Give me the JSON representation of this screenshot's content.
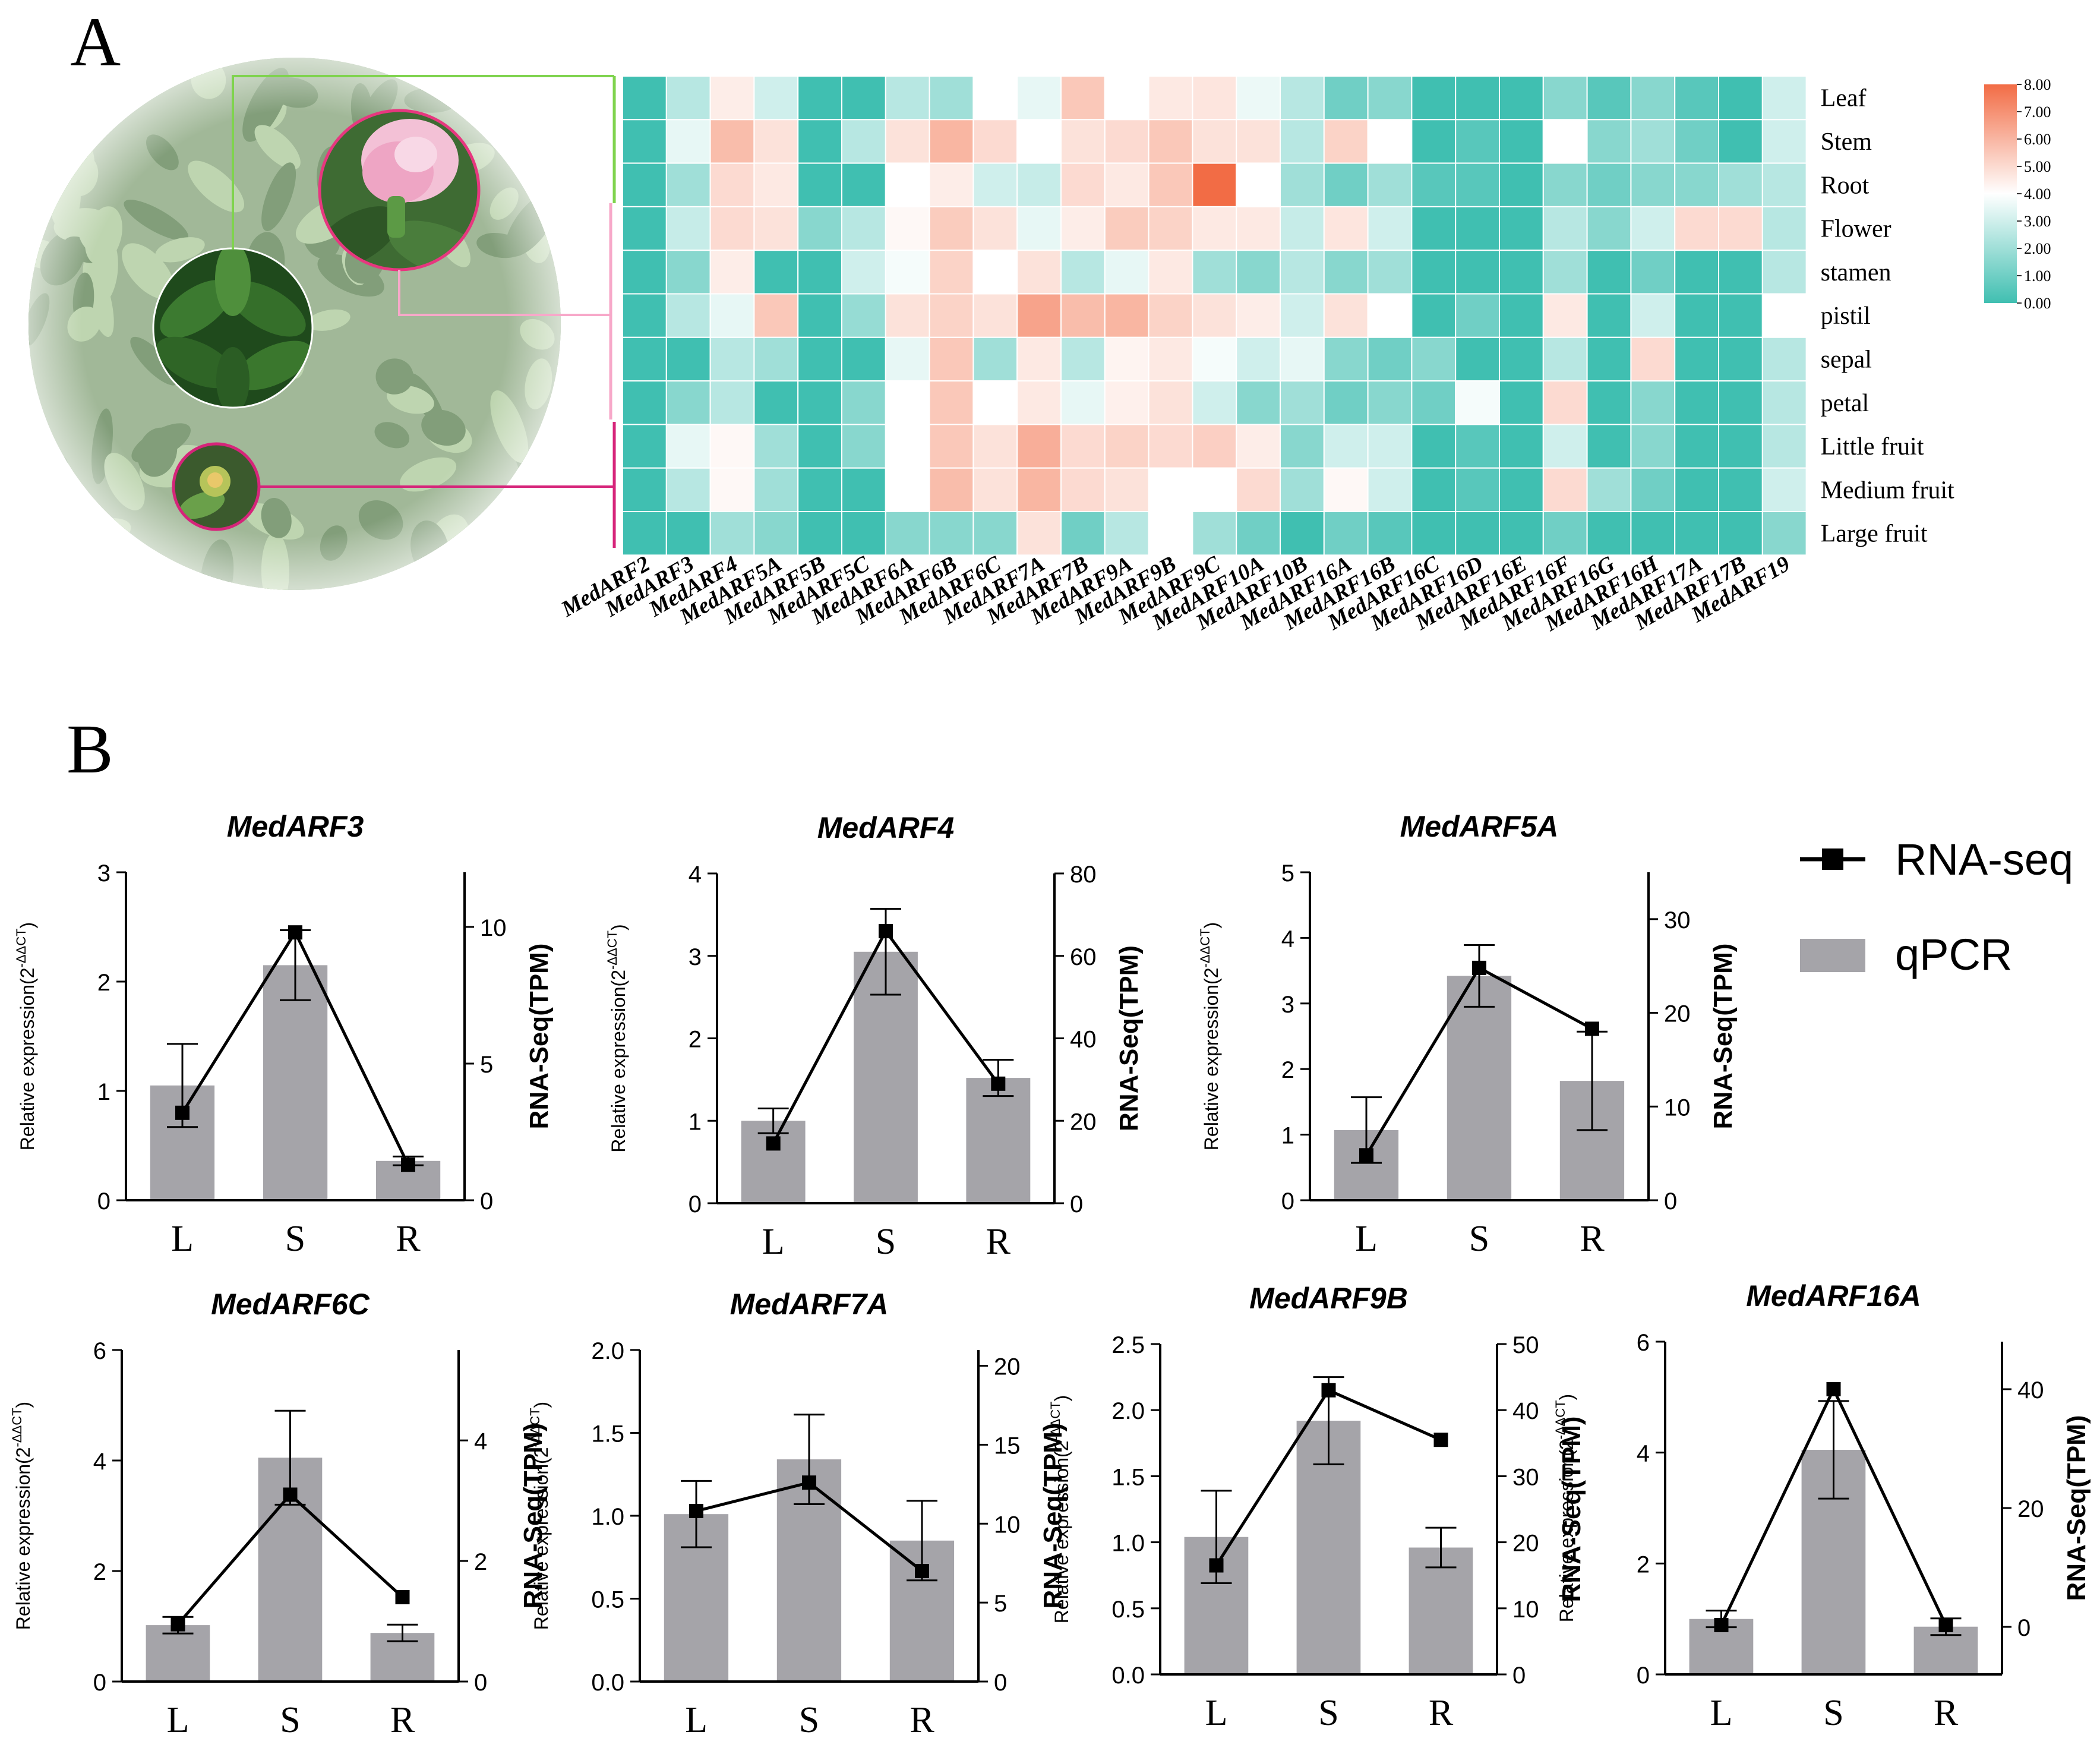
{
  "panels": {
    "a_label": "A",
    "b_label": "B"
  },
  "heatmap": {
    "genes": [
      "MedARF2",
      "MedARF3",
      "MedARF4",
      "MedARF5A",
      "MedARF5B",
      "MedARF5C",
      "MedARF6A",
      "MedARF6B",
      "MedARF6C",
      "MedARF7A",
      "MedARF7B",
      "MedARF9A",
      "MedARF9B",
      "MedARF9C",
      "MedARF10A",
      "MedARF10B",
      "MedARF16A",
      "MedARF16B",
      "MedARF16C",
      "MedARF16D",
      "MedARF16E",
      "MedARF16F",
      "MedARF16G",
      "MedARF16H",
      "MedARF17A",
      "MedARF17B",
      "MedARF19"
    ],
    "tissues": [
      "Leaf",
      "Stem",
      "Root",
      "Flower",
      "stamen",
      "pistil",
      "sepal",
      "petal",
      "Little fruit",
      "Medium fruit",
      "Large fruit"
    ],
    "values": [
      [
        0.0,
        2.5,
        4.5,
        3.0,
        0.0,
        0.0,
        2.5,
        2.0,
        4.0,
        3.5,
        5.5,
        4.0,
        4.6,
        4.7,
        3.6,
        2.5,
        1.0,
        1.5,
        0.0,
        0.0,
        0.0,
        1.5,
        0.5,
        1.5,
        0.5,
        0.0,
        3.0
      ],
      [
        0.0,
        3.5,
        5.8,
        4.8,
        0.0,
        2.5,
        4.8,
        6.0,
        5.0,
        4.0,
        4.8,
        5.0,
        5.5,
        4.8,
        4.8,
        2.5,
        5.2,
        4.0,
        0.0,
        0.5,
        0.0,
        4.0,
        1.5,
        2.0,
        1.0,
        0.0,
        3.0
      ],
      [
        0.0,
        2.0,
        5.0,
        4.6,
        0.0,
        0.0,
        4.0,
        4.5,
        3.0,
        2.8,
        5.0,
        4.6,
        5.5,
        8.0,
        4.0,
        2.0,
        1.0,
        2.0,
        0.5,
        0.5,
        0.0,
        1.5,
        1.0,
        1.5,
        1.5,
        2.0,
        2.5
      ],
      [
        0.0,
        2.8,
        5.0,
        4.8,
        1.5,
        2.5,
        4.2,
        5.4,
        4.8,
        3.5,
        4.5,
        5.4,
        5.2,
        4.6,
        4.6,
        2.8,
        4.7,
        3.0,
        0.0,
        0.0,
        0.0,
        2.5,
        1.5,
        3.0,
        5.0,
        5.0,
        2.5
      ],
      [
        0.0,
        1.5,
        4.5,
        0.0,
        0.0,
        3.0,
        3.8,
        5.2,
        4.0,
        4.8,
        2.5,
        3.5,
        4.6,
        2.0,
        1.5,
        2.5,
        1.5,
        2.0,
        0.0,
        0.0,
        0.0,
        2.0,
        0.0,
        1.0,
        0.0,
        0.0,
        2.5
      ],
      [
        0.0,
        2.5,
        3.5,
        5.5,
        0.0,
        1.8,
        4.8,
        5.2,
        4.8,
        6.5,
        5.8,
        6.0,
        5.2,
        4.8,
        4.5,
        3.0,
        4.8,
        4.0,
        0.0,
        1.0,
        0.0,
        4.6,
        0.0,
        3.0,
        0.0,
        0.0,
        4.0
      ],
      [
        0.0,
        0.0,
        2.5,
        2.0,
        0.0,
        0.0,
        3.5,
        5.5,
        2.0,
        4.6,
        2.5,
        4.3,
        4.6,
        3.8,
        3.0,
        3.5,
        1.5,
        1.0,
        1.5,
        0.0,
        0.0,
        2.5,
        0.0,
        5.0,
        0.0,
        0.0,
        2.5
      ],
      [
        0.0,
        1.5,
        2.5,
        0.0,
        0.0,
        1.5,
        4.0,
        5.5,
        4.0,
        4.6,
        3.5,
        4.4,
        4.8,
        3.0,
        1.5,
        2.0,
        1.0,
        1.5,
        1.0,
        3.8,
        0.0,
        5.0,
        0.0,
        1.5,
        0.0,
        0.0,
        2.5
      ],
      [
        0.0,
        3.5,
        4.2,
        2.0,
        0.0,
        1.5,
        4.0,
        5.5,
        4.8,
        6.2,
        5.0,
        5.2,
        5.0,
        5.3,
        4.5,
        1.5,
        3.0,
        3.0,
        0.0,
        0.5,
        0.0,
        3.0,
        0.0,
        1.5,
        0.0,
        0.0,
        2.5
      ],
      [
        0.0,
        2.5,
        4.2,
        2.0,
        0.0,
        0.0,
        4.0,
        5.8,
        4.8,
        6.0,
        5.0,
        4.8,
        4.0,
        4.0,
        5.0,
        2.0,
        4.2,
        3.0,
        0.0,
        0.5,
        0.0,
        5.0,
        2.0,
        1.0,
        0.0,
        0.0,
        3.0
      ],
      [
        0.0,
        0.0,
        2.0,
        1.5,
        0.0,
        0.0,
        1.5,
        1.5,
        1.5,
        4.8,
        1.0,
        2.5,
        4.0,
        2.0,
        1.0,
        0.0,
        1.0,
        0.5,
        0.0,
        0.0,
        0.0,
        1.0,
        0.0,
        0.0,
        0.0,
        0.0,
        1.5
      ]
    ]
  },
  "colorbar": {
    "ticks": [
      "8.00",
      "7.00",
      "6.00",
      "5.00",
      "4.00",
      "3.00",
      "2.00",
      "1.00",
      "0.00"
    ],
    "low_color": "#40bfb1",
    "mid_color": "#ffffff",
    "high_color": "#f26c45"
  },
  "photo_colors": {
    "bg": "#7d9e6c",
    "leaf_dark": "#3f6b34",
    "leaf_light": "#9bbf86",
    "flower": "#f0b6cf",
    "green_line": "#7fd34e",
    "pink_line": "#f7a8c9",
    "magenta_line": "#d6247a"
  },
  "legend": {
    "rnaseq": "RNA-seq",
    "qpcr": "qPCR"
  },
  "style": {
    "bar_color": "#a5a4a9",
    "line_color": "#000000"
  },
  "chart_data": [
    {
      "type": "bar",
      "title": "MedARF3",
      "categories": [
        "L",
        "S",
        "R"
      ],
      "ylabel": "Relative expression(2",
      "ylabel_sup": "-ΔΔCT",
      "ylabel_end": ")",
      "y2label": "RNA-Seq(TPM)",
      "ylim": [
        0,
        3
      ],
      "yticks": [
        0,
        1,
        2,
        3
      ],
      "y2lim": [
        0,
        12
      ],
      "y2ticks": [
        0,
        5,
        10
      ],
      "series": [
        {
          "name": "qPCR",
          "values": [
            1.05,
            2.15,
            0.36
          ],
          "errors": [
            0.38,
            0.32,
            0.04
          ]
        },
        {
          "name": "RNA-seq",
          "values": [
            3.2,
            9.8,
            1.3
          ]
        }
      ]
    },
    {
      "type": "bar",
      "title": "MedARF4",
      "categories": [
        "L",
        "S",
        "R"
      ],
      "ylabel": "Relative expression(2",
      "ylabel_sup": "-ΔΔCT",
      "ylabel_end": ")",
      "y2label": "RNA-Seq(TPM)",
      "ylim": [
        0,
        4
      ],
      "yticks": [
        0,
        1,
        2,
        3,
        4
      ],
      "y2lim": [
        0,
        80
      ],
      "y2ticks": [
        0,
        20,
        40,
        60,
        80
      ],
      "series": [
        {
          "name": "qPCR",
          "values": [
            1.0,
            3.05,
            1.52
          ],
          "errors": [
            0.15,
            0.52,
            0.22
          ]
        },
        {
          "name": "RNA-seq",
          "values": [
            14.5,
            66,
            29
          ]
        }
      ]
    },
    {
      "type": "bar",
      "title": "MedARF5A",
      "categories": [
        "L",
        "S",
        "R"
      ],
      "ylabel": "Relative expression(2",
      "ylabel_sup": "-ΔΔCT",
      "ylabel_end": ")",
      "y2label": "RNA-Seq(TPM)",
      "ylim": [
        0,
        5
      ],
      "yticks": [
        0,
        1,
        2,
        3,
        4,
        5
      ],
      "y2lim": [
        0,
        35
      ],
      "y2ticks": [
        0,
        10,
        20,
        30
      ],
      "series": [
        {
          "name": "qPCR",
          "values": [
            1.07,
            3.42,
            1.82
          ],
          "errors": [
            0.5,
            0.47,
            0.75
          ]
        },
        {
          "name": "RNA-seq",
          "values": [
            4.8,
            24.8,
            18.3
          ]
        }
      ]
    },
    {
      "type": "bar",
      "title": "MedARF6C",
      "categories": [
        "L",
        "S",
        "R"
      ],
      "ylabel": "Relative expression(2",
      "ylabel_sup": "-ΔΔCT",
      "ylabel_end": ")",
      "y2label": "RNA-Seq(TPM)",
      "ylim": [
        0,
        6
      ],
      "yticks": [
        0,
        2,
        4,
        6
      ],
      "y2lim": [
        0,
        5.5
      ],
      "y2ticks": [
        0,
        2,
        4
      ],
      "series": [
        {
          "name": "qPCR",
          "values": [
            1.02,
            4.05,
            0.88
          ],
          "errors": [
            0.15,
            0.85,
            0.15
          ]
        },
        {
          "name": "RNA-seq",
          "values": [
            0.95,
            3.1,
            1.4
          ]
        }
      ]
    },
    {
      "type": "bar",
      "title": "MedARF7A",
      "categories": [
        "L",
        "S",
        "R"
      ],
      "ylabel": "Relative expression(2",
      "ylabel_sup": "-ΔΔCT",
      "ylabel_end": ")",
      "y2label": "RNA-Seq(TPM)",
      "ylim": [
        0,
        2.0
      ],
      "yticks": [
        0.0,
        0.5,
        1.0,
        1.5,
        2.0
      ],
      "y2lim": [
        0,
        21
      ],
      "y2ticks": [
        0,
        5,
        10,
        15,
        20
      ],
      "series": [
        {
          "name": "qPCR",
          "values": [
            1.01,
            1.34,
            0.85
          ],
          "errors": [
            0.2,
            0.27,
            0.24
          ]
        },
        {
          "name": "RNA-seq",
          "values": [
            10.8,
            12.6,
            7.0
          ]
        }
      ]
    },
    {
      "type": "bar",
      "title": "MedARF9B",
      "categories": [
        "L",
        "S",
        "R"
      ],
      "ylabel": "Relative expression(2",
      "ylabel_sup": "-ΔΔCT",
      "ylabel_end": ")",
      "y2label": "RNA-Seq(TPM)",
      "ylim": [
        0,
        2.5
      ],
      "yticks": [
        0.0,
        0.5,
        1.0,
        1.5,
        2.0,
        2.5
      ],
      "y2lim": [
        0,
        50
      ],
      "y2ticks": [
        0,
        10,
        20,
        30,
        40,
        50
      ],
      "series": [
        {
          "name": "qPCR",
          "values": [
            1.04,
            1.92,
            0.96
          ],
          "errors": [
            0.35,
            0.33,
            0.15
          ]
        },
        {
          "name": "RNA-seq",
          "values": [
            16.5,
            43,
            35.5
          ]
        }
      ]
    },
    {
      "type": "bar",
      "title": "MedARF16A",
      "categories": [
        "L",
        "S",
        "R"
      ],
      "ylabel": "Relative expression(2",
      "ylabel_sup": "-ΔΔCT",
      "ylabel_end": ")",
      "y2label": "RNA-Seq(TPM)",
      "ylim": [
        0,
        6
      ],
      "yticks": [
        0,
        2,
        4,
        6
      ],
      "y2lim": [
        -8,
        48
      ],
      "y2ticks": [
        0,
        20,
        40
      ],
      "series": [
        {
          "name": "qPCR",
          "values": [
            1.0,
            4.05,
            0.86
          ],
          "errors": [
            0.15,
            0.88,
            0.15
          ]
        },
        {
          "name": "RNA-seq",
          "values": [
            0.3,
            40,
            0.3
          ]
        }
      ]
    }
  ]
}
